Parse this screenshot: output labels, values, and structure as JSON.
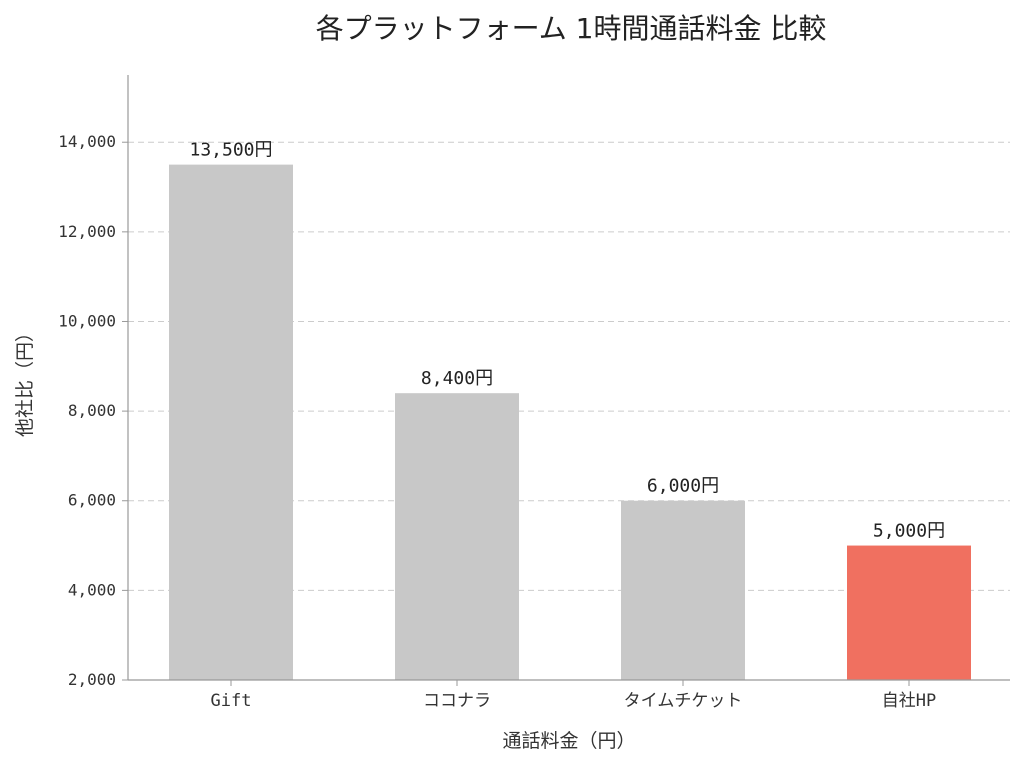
{
  "chart_data": {
    "type": "bar",
    "title": "各プラットフォーム 1時間通話料金 比較",
    "xlabel": "通話料金（円）",
    "ylabel": "他社比（円）",
    "categories": [
      "Gift",
      "ココナラ",
      "タイムチケット",
      "自社HP"
    ],
    "values": [
      13500,
      8400,
      6000,
      5000
    ],
    "value_labels": [
      "13,500円",
      "8,400円",
      "6,000円",
      "5,000円"
    ],
    "ylim": [
      2000,
      15500
    ],
    "yticks": [
      2000,
      4000,
      6000,
      8000,
      10000,
      12000,
      14000
    ],
    "ytick_labels": [
      "2,000",
      "4,000",
      "6,000",
      "8,000",
      "10,000",
      "12,000",
      "14,000"
    ],
    "grid": true,
    "colors": {
      "default_bar": "#c8c8c8",
      "highlight_bar": "#f07060"
    },
    "highlight_index": 3
  }
}
